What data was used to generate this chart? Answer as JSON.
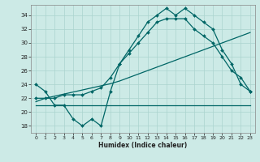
{
  "xlabel": "Humidex (Indice chaleur)",
  "bg_color": "#cceae6",
  "grid_color": "#aad4ce",
  "line_color": "#006666",
  "xlim": [
    -0.5,
    23.5
  ],
  "ylim": [
    17,
    35.5
  ],
  "yticks": [
    18,
    20,
    22,
    24,
    26,
    28,
    30,
    32,
    34
  ],
  "xticks": [
    0,
    1,
    2,
    3,
    4,
    5,
    6,
    7,
    8,
    9,
    10,
    11,
    12,
    13,
    14,
    15,
    16,
    17,
    18,
    19,
    20,
    21,
    22,
    23
  ],
  "series": [
    {
      "x": [
        0,
        1,
        2,
        3,
        4,
        5,
        6,
        7,
        8,
        9,
        10,
        11,
        12,
        13,
        14,
        15,
        16,
        17,
        18,
        19,
        20,
        21,
        22,
        23
      ],
      "y": [
        24,
        23,
        21,
        21,
        19,
        18,
        19,
        18,
        23,
        27,
        29,
        31,
        33,
        34,
        35,
        34,
        35,
        34,
        33,
        32,
        29,
        27,
        24,
        23
      ],
      "marker": "D",
      "markersize": 2.0,
      "lw": 0.9
    },
    {
      "x": [
        0,
        1,
        2,
        3,
        4,
        5,
        6,
        7,
        8,
        9,
        10,
        11,
        12,
        13,
        14,
        15,
        16,
        17,
        18,
        19,
        20,
        21,
        22,
        23
      ],
      "y": [
        21,
        21,
        21,
        21,
        21,
        21,
        21,
        21,
        21,
        21,
        21,
        21,
        21,
        21,
        21,
        21,
        21,
        21,
        21,
        21,
        21,
        21,
        21,
        21
      ],
      "marker": null,
      "markersize": 0,
      "lw": 0.9
    },
    {
      "x": [
        0,
        1,
        2,
        3,
        4,
        5,
        6,
        7,
        8,
        9,
        10,
        11,
        12,
        13,
        14,
        15,
        16,
        17,
        18,
        19,
        20,
        21,
        22,
        23
      ],
      "y": [
        21.5,
        22.0,
        22.3,
        22.6,
        22.9,
        23.2,
        23.5,
        23.8,
        24.1,
        24.5,
        25.0,
        25.5,
        26.0,
        26.5,
        27.0,
        27.5,
        28.0,
        28.5,
        29.0,
        29.5,
        30.0,
        30.5,
        31.0,
        31.5
      ],
      "marker": null,
      "markersize": 0,
      "lw": 0.9
    },
    {
      "x": [
        0,
        1,
        2,
        3,
        4,
        5,
        6,
        7,
        8,
        9,
        10,
        11,
        12,
        13,
        14,
        15,
        16,
        17,
        18,
        19,
        20,
        21,
        22,
        23
      ],
      "y": [
        22,
        22,
        22,
        22.5,
        22.5,
        22.5,
        23,
        23.5,
        25,
        27,
        28.5,
        30,
        31.5,
        33,
        33.5,
        33.5,
        33.5,
        32,
        31,
        30,
        28,
        26,
        25,
        23
      ],
      "marker": "D",
      "markersize": 2.0,
      "lw": 0.9
    }
  ]
}
